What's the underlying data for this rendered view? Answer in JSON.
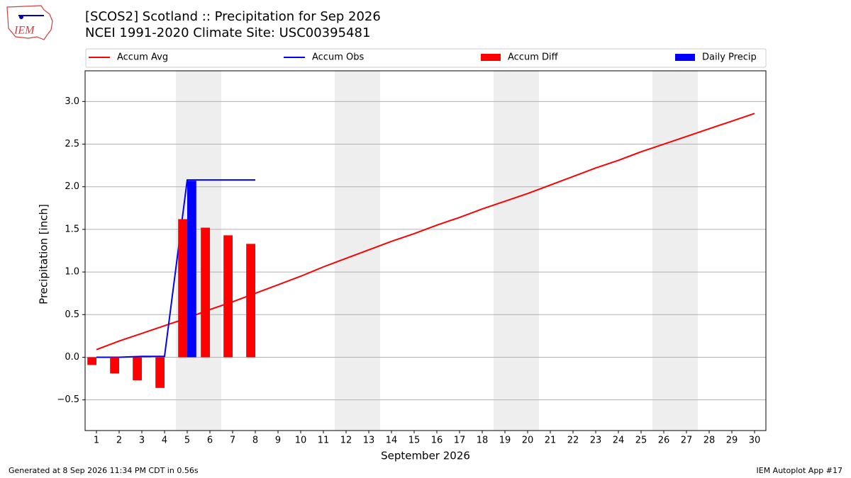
{
  "chart_data": {
    "type": "bar-line",
    "logo": "IEM",
    "title": "[SCOS2] Scotland :: Precipitation for Sep 2026",
    "subtitle": "NCEI 1991-2020 Climate Site: USC00395481",
    "ylabel": "Precipitation [inch]",
    "xlabel": "September 2026",
    "footer_left": "Generated at 8 Sep 2026 11:34 PM CDT in 0.56s",
    "footer_right": "IEM Autoplot App #17",
    "x": [
      1,
      2,
      3,
      4,
      5,
      6,
      7,
      8,
      9,
      10,
      11,
      12,
      13,
      14,
      15,
      16,
      17,
      18,
      19,
      20,
      21,
      22,
      23,
      24,
      25,
      26,
      27,
      28,
      29,
      30
    ],
    "xlim": [
      0.5,
      30.5
    ],
    "xticks": [
      1,
      2,
      3,
      4,
      5,
      6,
      7,
      8,
      9,
      10,
      11,
      12,
      13,
      14,
      15,
      16,
      17,
      18,
      19,
      20,
      21,
      22,
      23,
      24,
      25,
      26,
      27,
      28,
      29,
      30
    ],
    "ylim": [
      -0.86,
      3.36
    ],
    "yticks": [
      {
        "value": -0.5,
        "label": "−0.5"
      },
      {
        "value": 0,
        "label": "0.0"
      },
      0.5,
      {
        "value": 1,
        "label": "1.0"
      },
      1.5,
      {
        "value": 2,
        "label": "2.0"
      },
      2.5,
      {
        "value": 3,
        "label": "3.0"
      }
    ],
    "grid": true,
    "weekend_spans": [
      [
        4.5,
        6.5
      ],
      [
        11.5,
        13.5
      ],
      [
        18.5,
        20.5
      ],
      [
        25.5,
        27.5
      ]
    ],
    "series": [
      {
        "name": "Accum Avg",
        "kind": "line",
        "color": "#ff0000",
        "values": [
          0.09,
          0.19,
          0.28,
          0.37,
          0.46,
          0.56,
          0.65,
          0.75,
          0.85,
          0.95,
          1.06,
          1.16,
          1.26,
          1.36,
          1.45,
          1.55,
          1.64,
          1.74,
          1.83,
          1.92,
          2.02,
          2.12,
          2.22,
          2.31,
          2.41,
          2.5,
          2.59,
          2.68,
          2.77,
          2.86
        ]
      },
      {
        "name": "Accum Obs",
        "kind": "line",
        "color": "#0000ff",
        "values": [
          0,
          0,
          0.01,
          0.01,
          2.08,
          2.08,
          2.08,
          2.08,
          null,
          null,
          null,
          null,
          null,
          null,
          null,
          null,
          null,
          null,
          null,
          null,
          null,
          null,
          null,
          null,
          null,
          null,
          null,
          null,
          null,
          null
        ]
      },
      {
        "name": "Accum Diff",
        "kind": "bar",
        "offset": -0.2,
        "color": "#ff0000",
        "values": [
          -0.09,
          -0.19,
          -0.27,
          -0.36,
          1.62,
          1.52,
          1.43,
          1.33,
          null,
          null,
          null,
          null,
          null,
          null,
          null,
          null,
          null,
          null,
          null,
          null,
          null,
          null,
          null,
          null,
          null,
          null,
          null,
          null,
          null,
          null
        ]
      },
      {
        "name": "Daily Precip",
        "kind": "bar",
        "offset": 0.2,
        "color": "#0000ff",
        "values": [
          0,
          0,
          0.01,
          0,
          2.07,
          0,
          0,
          0,
          null,
          null,
          null,
          null,
          null,
          null,
          null,
          null,
          null,
          null,
          null,
          null,
          null,
          null,
          null,
          null,
          null,
          null,
          null,
          null,
          null,
          null
        ]
      }
    ]
  }
}
